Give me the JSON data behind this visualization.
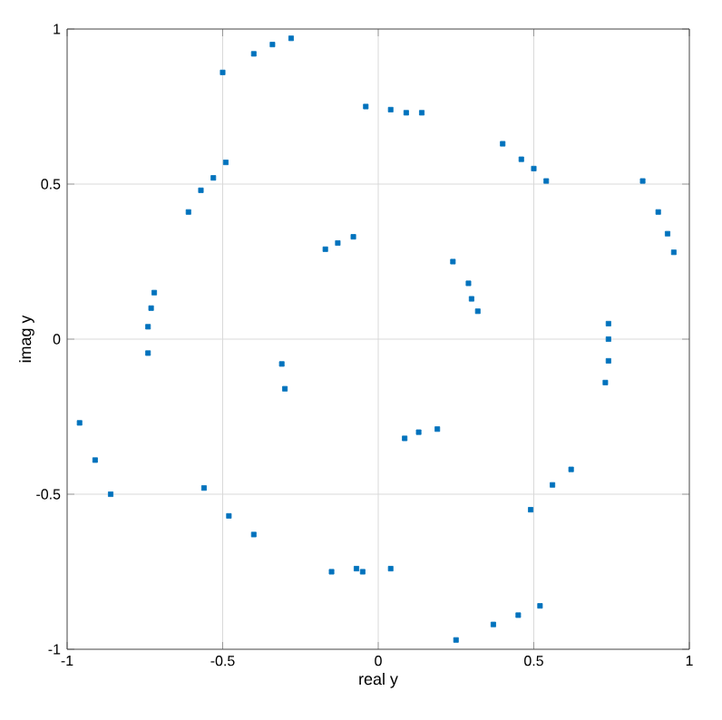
{
  "chart_data": {
    "type": "scatter",
    "xlabel": "real y",
    "ylabel": "imag y",
    "xlim": [
      -1,
      1
    ],
    "ylim": [
      -1,
      1
    ],
    "xticks": [
      -1,
      -0.5,
      0,
      0.5,
      1
    ],
    "yticks": [
      -1,
      -0.5,
      0,
      0.5,
      1
    ],
    "grid": true,
    "marker": "square",
    "series": [
      {
        "color": "#0072bd",
        "x": [
          -0.5,
          -0.4,
          -0.34,
          -0.28,
          -0.61,
          -0.57,
          -0.53,
          -0.49,
          -0.17,
          -0.13,
          -0.08,
          -0.72,
          -0.73,
          -0.74,
          -0.74,
          -0.04,
          0.04,
          0.09,
          0.14,
          0.4,
          0.46,
          0.5,
          0.54,
          0.85,
          0.9,
          0.93,
          0.95,
          0.29,
          0.3,
          0.32,
          0.24,
          0.74,
          0.74,
          0.74,
          0.73,
          -0.31,
          -0.3,
          -0.96,
          -0.91,
          -0.86,
          -0.56,
          -0.48,
          -0.4,
          -0.15,
          -0.07,
          -0.05,
          0.04,
          0.085,
          0.13,
          0.19,
          0.49,
          0.56,
          0.62,
          0.25,
          0.37,
          0.45,
          0.52
        ],
        "values": [
          0.86,
          0.92,
          0.95,
          0.97,
          0.41,
          0.48,
          0.52,
          0.57,
          0.29,
          0.31,
          0.33,
          0.15,
          0.1,
          0.04,
          -0.045,
          0.75,
          0.74,
          0.73,
          0.73,
          0.63,
          0.58,
          0.55,
          0.51,
          0.51,
          0.41,
          0.34,
          0.28,
          0.18,
          0.13,
          0.09,
          0.25,
          0.05,
          0.0,
          -0.07,
          -0.14,
          -0.08,
          -0.16,
          -0.27,
          -0.39,
          -0.5,
          -0.48,
          -0.57,
          -0.63,
          -0.75,
          -0.74,
          -0.75,
          -0.74,
          -0.32,
          -0.3,
          -0.29,
          -0.55,
          -0.47,
          -0.42,
          -0.97,
          -0.92,
          -0.89,
          -0.86
        ]
      }
    ]
  }
}
